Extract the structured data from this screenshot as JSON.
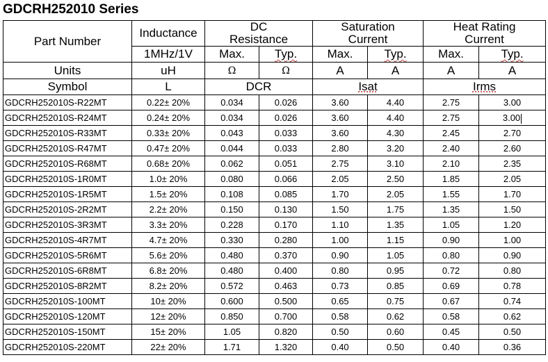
{
  "title": "GDCRH252010 Series",
  "header": {
    "part_number": "Part Number",
    "inductance": "Inductance",
    "dc_resistance": "DC\nResistance",
    "saturation_current": "Saturation\nCurrent",
    "heat_rating_current": "Heat Rating\nCurrent",
    "inductance_condition": "1MHz/1V",
    "max": "Max.",
    "typ": "Typ.",
    "units_label": "Units",
    "unit_inductance": "uH",
    "unit_resistance": "Ω",
    "unit_current": "A",
    "symbol_label": "Symbol",
    "symbol_inductance": "L",
    "symbol_dcr": "DCR",
    "symbol_isat": "Isat",
    "symbol_irms": "Irms"
  },
  "rows": [
    {
      "part": "GDCRH252010S-R22MT",
      "l": "0.22± 20%",
      "dcr_max": "0.034",
      "dcr_typ": "0.026",
      "isat_max": "3.60",
      "isat_typ": "4.40",
      "irms_max": "2.75",
      "irms_typ": "3.00"
    },
    {
      "part": "GDCRH252010S-R24MT",
      "l": "0.24± 20%",
      "dcr_max": "0.034",
      "dcr_typ": "0.026",
      "isat_max": "3.60",
      "isat_typ": "4.40",
      "irms_max": "2.75",
      "irms_typ": "3.00"
    },
    {
      "part": "GDCRH252010S-R33MT",
      "l": "0.33± 20%",
      "dcr_max": "0.043",
      "dcr_typ": "0.033",
      "isat_max": "3.60",
      "isat_typ": "4.30",
      "irms_max": "2.45",
      "irms_typ": "2.70"
    },
    {
      "part": "GDCRH252010S-R47MT",
      "l": "0.47± 20%",
      "dcr_max": "0.044",
      "dcr_typ": "0.033",
      "isat_max": "2.80",
      "isat_typ": "3.20",
      "irms_max": "2.40",
      "irms_typ": "2.60"
    },
    {
      "part": "GDCRH252010S-R68MT",
      "l": "0.68± 20%",
      "dcr_max": "0.062",
      "dcr_typ": "0.051",
      "isat_max": "2.75",
      "isat_typ": "3.10",
      "irms_max": "2.10",
      "irms_typ": "2.35"
    },
    {
      "part": "GDCRH252010S-1R0MT",
      "l": "1.0± 20%",
      "dcr_max": "0.080",
      "dcr_typ": "0.066",
      "isat_max": "2.05",
      "isat_typ": "2.50",
      "irms_max": "1.85",
      "irms_typ": "2.05"
    },
    {
      "part": "GDCRH252010S-1R5MT",
      "l": "1.5± 20%",
      "dcr_max": "0.108",
      "dcr_typ": "0.085",
      "isat_max": "1.70",
      "isat_typ": "2.05",
      "irms_max": "1.55",
      "irms_typ": "1.70"
    },
    {
      "part": "GDCRH252010S-2R2MT",
      "l": "2.2± 20%",
      "dcr_max": "0.150",
      "dcr_typ": "0.130",
      "isat_max": "1.50",
      "isat_typ": "1.75",
      "irms_max": "1.35",
      "irms_typ": "1.50"
    },
    {
      "part": "GDCRH252010S-3R3MT",
      "l": "3.3± 20%",
      "dcr_max": "0.228",
      "dcr_typ": "0.170",
      "isat_max": "1.10",
      "isat_typ": "1.35",
      "irms_max": "1.05",
      "irms_typ": "1.20"
    },
    {
      "part": "GDCRH252010S-4R7MT",
      "l": "4.7± 20%",
      "dcr_max": "0.330",
      "dcr_typ": "0.280",
      "isat_max": "1.00",
      "isat_typ": "1.15",
      "irms_max": "0.90",
      "irms_typ": "1.00"
    },
    {
      "part": "GDCRH252010S-5R6MT",
      "l": "5.6± 20%",
      "dcr_max": "0.480",
      "dcr_typ": "0.370",
      "isat_max": "0.90",
      "isat_typ": "1.05",
      "irms_max": "0.80",
      "irms_typ": "0.90"
    },
    {
      "part": "GDCRH252010S-6R8MT",
      "l": "6.8± 20%",
      "dcr_max": "0.480",
      "dcr_typ": "0.400",
      "isat_max": "0.80",
      "isat_typ": "0.95",
      "irms_max": "0.72",
      "irms_typ": "0.80"
    },
    {
      "part": "GDCRH252010S-8R2MT",
      "l": "8.2± 20%",
      "dcr_max": "0.572",
      "dcr_typ": "0.463",
      "isat_max": "0.73",
      "isat_typ": "0.85",
      "irms_max": "0.69",
      "irms_typ": "0.78"
    },
    {
      "part": "GDCRH252010S-100MT",
      "l": "10± 20%",
      "dcr_max": "0.600",
      "dcr_typ": "0.500",
      "isat_max": "0.65",
      "isat_typ": "0.75",
      "irms_max": "0.67",
      "irms_typ": "0.74"
    },
    {
      "part": "GDCRH252010S-120MT",
      "l": "12± 20%",
      "dcr_max": "0.850",
      "dcr_typ": "0.700",
      "isat_max": "0.58",
      "isat_typ": "0.62",
      "irms_max": "0.58",
      "irms_typ": "0.62"
    },
    {
      "part": "GDCRH252010S-150MT",
      "l": "15± 20%",
      "dcr_max": "1.05",
      "dcr_typ": "0.820",
      "isat_max": "0.50",
      "isat_typ": "0.60",
      "irms_max": "0.45",
      "irms_typ": "0.50"
    },
    {
      "part": "GDCRH252010S-220MT",
      "l": "22± 20%",
      "dcr_max": "1.71",
      "dcr_typ": "1.320",
      "isat_max": "0.40",
      "isat_typ": "0.50",
      "irms_max": "0.40",
      "irms_typ": "0.36"
    }
  ]
}
